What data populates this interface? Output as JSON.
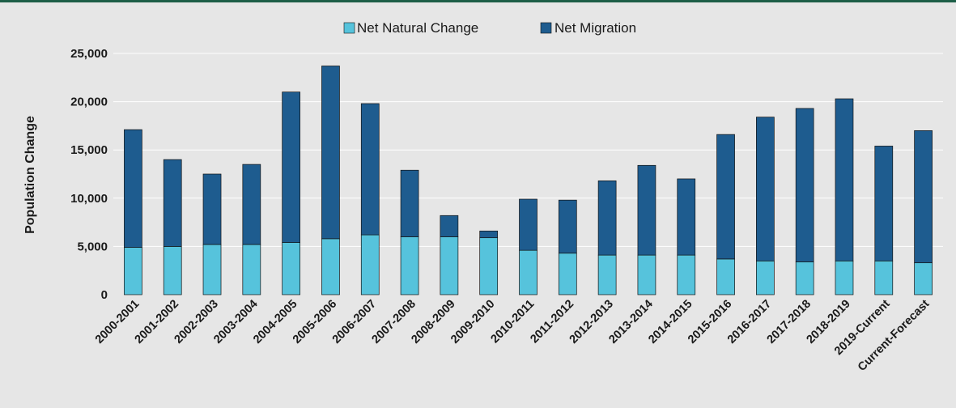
{
  "chart_data": {
    "type": "bar",
    "stacked": true,
    "title": "",
    "xlabel": "",
    "ylabel": "Population Change",
    "ylim": [
      0,
      25000
    ],
    "yticks": [
      0,
      5000,
      10000,
      15000,
      20000,
      25000
    ],
    "ytick_labels": [
      "0",
      "5,000",
      "10,000",
      "15,000",
      "20,000",
      "25,000"
    ],
    "grid": true,
    "legend_position": "top-center",
    "categories": [
      "2000-2001",
      "2001-2002",
      "2002-2003",
      "2003-2004",
      "2004-2005",
      "2005-2006",
      "2006-2007",
      "2007-2008",
      "2008-2009",
      "2009-2010",
      "2010-2011",
      "2011-2012",
      "2012-2013",
      "2013-2014",
      "2014-2015",
      "2015-2016",
      "2016-2017",
      "2017-2018",
      "2018-2019",
      "2019-Current",
      "Current-Forecast"
    ],
    "series": [
      {
        "name": "Net Natural Change",
        "color": "#56c3dc",
        "values": [
          4900,
          5000,
          5200,
          5200,
          5400,
          5800,
          6200,
          6000,
          6000,
          5900,
          4600,
          4300,
          4100,
          4100,
          4100,
          3700,
          3500,
          3400,
          3500,
          3500,
          3300
        ]
      },
      {
        "name": "Net Migration",
        "color": "#1e5c8f",
        "values": [
          12200,
          9000,
          7300,
          8300,
          15600,
          17900,
          13600,
          6900,
          2200,
          700,
          5300,
          5500,
          7700,
          9300,
          7900,
          12900,
          14900,
          15900,
          16800,
          11900,
          13700
        ]
      }
    ],
    "colors": {
      "background": "#e6e6e6",
      "top_rule": "#1d5e47",
      "gridline": "#ffffff",
      "bar_edge": "#111111"
    }
  }
}
